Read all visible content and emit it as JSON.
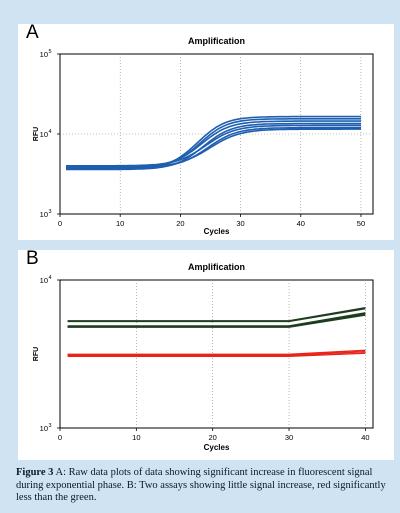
{
  "caption": {
    "figure_label": "Figure 3",
    "text": "A: Raw data plots of data showing significant increase in fluorescent signal during exponential phase. B: Two assays showing little signal increase, red significantly less than the green."
  },
  "chart_data": [
    {
      "panel_label": "A",
      "type": "line",
      "title": "Amplification",
      "xlabel": "Cycles",
      "ylabel": "RFU",
      "xlim": [
        0,
        52
      ],
      "ylim": [
        1000,
        100000
      ],
      "yscale": "log",
      "x_ticks": [
        0,
        10,
        20,
        30,
        40,
        50
      ],
      "y_ticks": [
        {
          "value": 1000,
          "base": "10",
          "exp": "3"
        },
        {
          "value": 10000,
          "base": "10",
          "exp": "4"
        },
        {
          "value": 100000,
          "base": "10",
          "exp": "5"
        }
      ],
      "grid": true,
      "series_color": "#1f5fb0",
      "series": [
        {
          "baseline": 3700,
          "plateau": 16500,
          "midpoint": 24.5,
          "slope": 2.2
        },
        {
          "baseline": 3800,
          "plateau": 15500,
          "midpoint": 24.8,
          "slope": 2.2
        },
        {
          "baseline": 3900,
          "plateau": 14500,
          "midpoint": 25.0,
          "slope": 2.3
        },
        {
          "baseline": 3600,
          "plateau": 13500,
          "midpoint": 25.3,
          "slope": 2.3
        },
        {
          "baseline": 4000,
          "plateau": 12800,
          "midpoint": 25.6,
          "slope": 2.4
        },
        {
          "baseline": 3750,
          "plateau": 12000,
          "midpoint": 25.9,
          "slope": 2.4
        },
        {
          "baseline": 3850,
          "plateau": 11500,
          "midpoint": 26.2,
          "slope": 2.5
        }
      ]
    },
    {
      "panel_label": "B",
      "type": "line",
      "title": "Amplification",
      "xlabel": "Cycles",
      "ylabel": "RFU",
      "xlim": [
        0,
        41
      ],
      "ylim": [
        1000,
        10000
      ],
      "yscale": "log",
      "x_ticks": [
        0,
        10,
        20,
        30,
        40
      ],
      "y_ticks": [
        {
          "value": 1000,
          "base": "10",
          "exp": "3"
        },
        {
          "value": 10000,
          "base": "10",
          "exp": "4"
        }
      ],
      "grid": true,
      "series": [
        {
          "color": "#1e3d1e",
          "points": [
            [
              1,
              5300
            ],
            [
              30,
              5300
            ],
            [
              40,
              6500
            ]
          ]
        },
        {
          "color": "#1e3d1e",
          "points": [
            [
              1,
              5250
            ],
            [
              30,
              5250
            ],
            [
              40,
              6400
            ]
          ]
        },
        {
          "color": "#1e3d1e",
          "points": [
            [
              1,
              4900
            ],
            [
              30,
              4900
            ],
            [
              40,
              6000
            ]
          ]
        },
        {
          "color": "#1e3d1e",
          "points": [
            [
              1,
              4800
            ],
            [
              30,
              4800
            ],
            [
              40,
              5800
            ]
          ]
        },
        {
          "color": "#1e3d1e",
          "points": [
            [
              1,
              4850
            ],
            [
              30,
              4850
            ],
            [
              40,
              5900
            ]
          ]
        },
        {
          "color": "#e8231a",
          "points": [
            [
              1,
              3150
            ],
            [
              30,
              3150
            ],
            [
              40,
              3350
            ]
          ]
        },
        {
          "color": "#e8231a",
          "points": [
            [
              1,
              3050
            ],
            [
              30,
              3050
            ],
            [
              40,
              3200
            ]
          ]
        },
        {
          "color": "#e8231a",
          "points": [
            [
              1,
              3100
            ],
            [
              30,
              3100
            ],
            [
              40,
              3280
            ]
          ]
        }
      ]
    }
  ]
}
